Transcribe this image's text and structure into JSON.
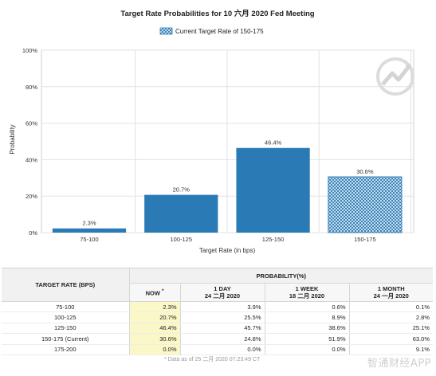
{
  "chart_data": {
    "type": "bar",
    "title": "Target Rate Probabilities for 10 六月 2020 Fed Meeting",
    "legend": {
      "label": "Current Target Rate of 150-175",
      "position": "top-center"
    },
    "categories": [
      "75-100",
      "100-125",
      "125-150",
      "150-175"
    ],
    "values": [
      2.3,
      20.7,
      46.4,
      30.6
    ],
    "data_labels": [
      "2.3%",
      "20.7%",
      "46.4%",
      "30.6%"
    ],
    "highlighted_category": "150-175",
    "xlabel": "Target Rate (in bps)",
    "ylabel": "Probability",
    "ylim": [
      0,
      100
    ],
    "yticks": [
      0,
      20,
      40,
      60,
      80,
      100
    ],
    "ytick_labels": [
      "0%",
      "20%",
      "40%",
      "60%",
      "80%",
      "100%"
    ],
    "grid": true,
    "colors": {
      "bar": "#2a7ab5",
      "hatch": "#2a7ab5",
      "grid": "#e2e2e2"
    }
  },
  "table": {
    "header": {
      "target_rate": "TARGET RATE (BPS)",
      "probability": "PROBABILITY(%)",
      "now": "NOW",
      "now_mark": "*",
      "day_line1": "1 DAY",
      "day_line2": "24 二月 2020",
      "week_line1": "1 WEEK",
      "week_line2": "18 二月 2020",
      "month_line1": "1 MONTH",
      "month_line2": "24 一月 2020"
    },
    "rows": [
      {
        "rate": "75-100",
        "now": "2.3%",
        "day": "3.9%",
        "week": "0.6%",
        "month": "0.1%"
      },
      {
        "rate": "100-125",
        "now": "20.7%",
        "day": "25.5%",
        "week": "8.9%",
        "month": "2.8%"
      },
      {
        "rate": "125-150",
        "now": "46.4%",
        "day": "45.7%",
        "week": "38.6%",
        "month": "25.1%"
      },
      {
        "rate": "150-175 (Current)",
        "now": "30.6%",
        "day": "24.8%",
        "week": "51.9%",
        "month": "63.0%"
      },
      {
        "rate": "175-200",
        "now": "0.0%",
        "day": "0.0%",
        "week": "0.0%",
        "month": "9.1%"
      }
    ],
    "footnote": "* Data as of 25 二月 2020 07:23:49 CT"
  },
  "watermark": "智通财经APP"
}
